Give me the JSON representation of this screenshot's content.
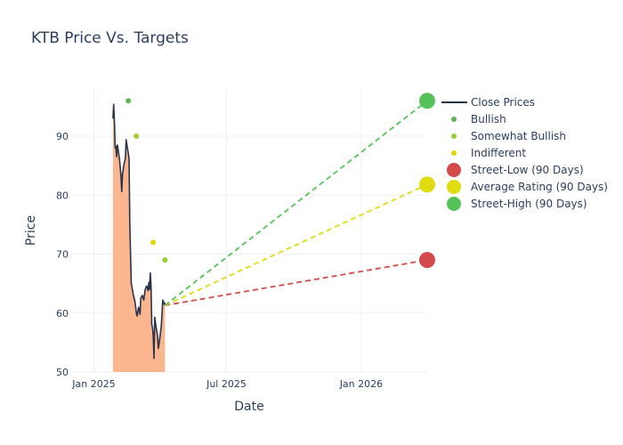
{
  "chart_data": {
    "type": "line",
    "title": "KTB Price Vs. Targets",
    "xlabel": "Date",
    "ylabel": "Price",
    "xlim": [
      "2024-12-01",
      "2026-04-01"
    ],
    "ylim": [
      50,
      98
    ],
    "x_ticks": [
      {
        "date": "2025-01-01",
        "label": "Jan 2025"
      },
      {
        "date": "2025-07-01",
        "label": "Jul 2025"
      },
      {
        "date": "2026-01-01",
        "label": "Jan 2026"
      }
    ],
    "y_ticks": [
      50,
      60,
      70,
      80,
      90
    ],
    "grid": true,
    "legend_position": "right",
    "series": [
      {
        "name": "Close Prices",
        "type": "line",
        "color": "#2a3347",
        "fill_color": "#fbb58f",
        "points": [
          [
            "2025-01-27",
            93.0
          ],
          [
            "2025-01-28",
            95.4
          ],
          [
            "2025-01-29",
            92.5
          ],
          [
            "2025-01-30",
            88.0
          ],
          [
            "2025-01-31",
            88.3
          ],
          [
            "2025-02-01",
            86.5
          ],
          [
            "2025-02-02",
            88.5
          ],
          [
            "2025-02-03",
            87.8
          ],
          [
            "2025-02-05",
            86.0
          ],
          [
            "2025-02-07",
            83.2
          ],
          [
            "2025-02-08",
            80.6
          ],
          [
            "2025-02-09",
            83.5
          ],
          [
            "2025-02-11",
            85.2
          ],
          [
            "2025-02-13",
            86.3
          ],
          [
            "2025-02-14",
            89.4
          ],
          [
            "2025-02-16",
            87.8
          ],
          [
            "2025-02-18",
            86.2
          ],
          [
            "2025-02-19",
            75.0
          ],
          [
            "2025-02-21",
            65.0
          ],
          [
            "2025-02-24",
            63.0
          ],
          [
            "2025-02-26",
            62.0
          ],
          [
            "2025-02-28",
            60.0
          ],
          [
            "2025-03-01",
            59.5
          ],
          [
            "2025-03-03",
            61.0
          ],
          [
            "2025-03-05",
            59.8
          ],
          [
            "2025-03-06",
            62.5
          ],
          [
            "2025-03-08",
            63.0
          ],
          [
            "2025-03-10",
            62.2
          ],
          [
            "2025-03-12",
            64.0
          ],
          [
            "2025-03-14",
            64.6
          ],
          [
            "2025-03-16",
            63.8
          ],
          [
            "2025-03-17",
            65.2
          ],
          [
            "2025-03-18",
            64.0
          ],
          [
            "2025-03-19",
            66.8
          ],
          [
            "2025-03-20",
            64.5
          ],
          [
            "2025-03-21",
            58.0
          ],
          [
            "2025-03-22",
            57.5
          ],
          [
            "2025-03-23",
            56.2
          ],
          [
            "2025-03-24",
            52.3
          ],
          [
            "2025-03-25",
            59.3
          ],
          [
            "2025-03-27",
            57.5
          ],
          [
            "2025-03-29",
            56.0
          ],
          [
            "2025-03-30",
            54.0
          ],
          [
            "2025-04-01",
            55.8
          ],
          [
            "2025-04-03",
            57.8
          ],
          [
            "2025-04-05",
            62.2
          ],
          [
            "2025-04-07",
            61.5
          ],
          [
            "2025-04-08",
            61.8
          ]
        ]
      },
      {
        "name": "Bullish",
        "type": "scatter",
        "color": "#5ab552",
        "points": [
          [
            "2025-02-17",
            96.0
          ]
        ]
      },
      {
        "name": "Somewhat Bullish",
        "type": "scatter",
        "color": "#9acd32",
        "points": [
          [
            "2025-02-28",
            90.0
          ],
          [
            "2025-04-08",
            69.0
          ]
        ]
      },
      {
        "name": "Indifferent",
        "type": "scatter",
        "color": "#e6d400",
        "points": [
          [
            "2025-03-23",
            72.0
          ]
        ]
      },
      {
        "name": "Street-Low (90 Days)",
        "type": "scatter",
        "color": "#d44a4a",
        "points": [
          [
            "2026-04-01",
            69.0
          ]
        ]
      },
      {
        "name": "Average Rating (90 Days)",
        "type": "scatter",
        "color": "#e0dc10",
        "points": [
          [
            "2026-04-01",
            81.8
          ]
        ]
      },
      {
        "name": "Street-High (90 Days)",
        "type": "scatter",
        "color": "#56c35a",
        "points": [
          [
            "2026-04-01",
            96.0
          ]
        ]
      }
    ],
    "target_lines": [
      {
        "from": [
          "2025-04-08",
          61.3
        ],
        "to": [
          "2026-04-01",
          69.0
        ],
        "color": "#d44a4a"
      },
      {
        "from": [
          "2025-04-08",
          61.3
        ],
        "to": [
          "2026-04-01",
          81.8
        ],
        "color": "#e0dc10"
      },
      {
        "from": [
          "2025-04-08",
          61.3
        ],
        "to": [
          "2026-04-01",
          96.0
        ],
        "color": "#56c35a"
      }
    ]
  }
}
